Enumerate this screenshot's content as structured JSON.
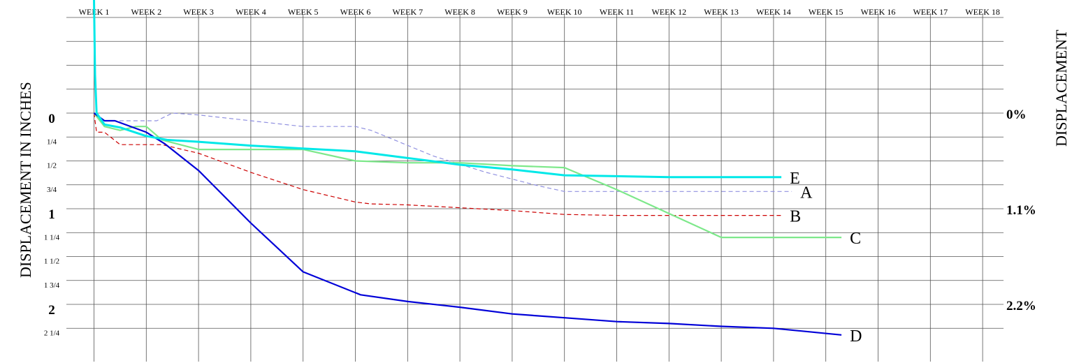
{
  "chart_data": {
    "type": "line",
    "title": "",
    "xlabel": "",
    "ylabel": "DISPLACEMENT IN INCHES",
    "ylabel_right": "DISPLACEMENT",
    "x_ticks": [
      "WEEK 1",
      "WEEK 2",
      "WEEK 3",
      "WEEK 4",
      "WEEK 5",
      "WEEK 6",
      "WEEK 7",
      "WEEK 8",
      "WEEK 9",
      "WEEK 10",
      "WEEK 11",
      "WEEK 12",
      "WEEK 13",
      "WEEK 14",
      "WEEK 15",
      "WEEK 16",
      "WEEK 17",
      "WEEK 18"
    ],
    "y_ticks": [
      "0",
      "1/4",
      "1/2",
      "3/4",
      "1",
      "1 1/4",
      "1 1/2",
      "1 3/4",
      "2",
      "2 1/4"
    ],
    "y_ticks_right": [
      {
        "value": 0,
        "label": "0%"
      },
      {
        "value": 1,
        "label": "1.1%"
      },
      {
        "value": 2,
        "label": "2.2%"
      }
    ],
    "ylim": [
      2.5,
      -1.2
    ],
    "xlim": [
      1,
      18.5
    ],
    "grid": true,
    "series": [
      {
        "name": "A",
        "color": "#9090e0",
        "style": "dashed",
        "points": [
          [
            1,
            0
          ],
          [
            1.2,
            0.08
          ],
          [
            1.6,
            0.08
          ],
          [
            2.2,
            0.08
          ],
          [
            2.5,
            0.0
          ],
          [
            3,
            0.02
          ],
          [
            4,
            0.08
          ],
          [
            5,
            0.14
          ],
          [
            6,
            0.14
          ],
          [
            6.3,
            0.18
          ],
          [
            7.5,
            0.45
          ],
          [
            8.5,
            0.62
          ],
          [
            9.5,
            0.76
          ],
          [
            10,
            0.82
          ],
          [
            11,
            0.82
          ],
          [
            12,
            0.82
          ],
          [
            13,
            0.82
          ],
          [
            14,
            0.82
          ],
          [
            14.35,
            0.82
          ]
        ]
      },
      {
        "name": "B",
        "color": "#cc0000",
        "style": "dashed",
        "points": [
          [
            1,
            0
          ],
          [
            1.05,
            0.2
          ],
          [
            1.2,
            0.2
          ],
          [
            1.5,
            0.33
          ],
          [
            2.3,
            0.33
          ],
          [
            3,
            0.42
          ],
          [
            4,
            0.62
          ],
          [
            5,
            0.8
          ],
          [
            6,
            0.93
          ],
          [
            6.3,
            0.95
          ],
          [
            7,
            0.96
          ],
          [
            8,
            0.99
          ],
          [
            9,
            1.02
          ],
          [
            10,
            1.06
          ],
          [
            11,
            1.07
          ],
          [
            12,
            1.07
          ],
          [
            13,
            1.07
          ],
          [
            14,
            1.07
          ],
          [
            14.15,
            1.07
          ]
        ]
      },
      {
        "name": "C",
        "color": "#7de88a",
        "style": "solid",
        "points": [
          [
            1,
            0
          ],
          [
            1.2,
            0.14
          ],
          [
            1.5,
            0.18
          ],
          [
            1.8,
            0.14
          ],
          [
            2,
            0.14
          ],
          [
            2.3,
            0.28
          ],
          [
            3,
            0.38
          ],
          [
            4,
            0.38
          ],
          [
            5,
            0.38
          ],
          [
            6,
            0.5
          ],
          [
            7,
            0.52
          ],
          [
            8,
            0.52
          ],
          [
            9,
            0.55
          ],
          [
            10,
            0.57
          ],
          [
            11,
            0.8
          ],
          [
            12,
            1.05
          ],
          [
            13,
            1.3
          ],
          [
            14,
            1.3
          ],
          [
            15,
            1.3
          ],
          [
            15.3,
            1.3
          ]
        ]
      },
      {
        "name": "D",
        "color": "#0000d8",
        "style": "solid",
        "points": [
          [
            1,
            0
          ],
          [
            1.2,
            0.08
          ],
          [
            1.4,
            0.08
          ],
          [
            2,
            0.2
          ],
          [
            2.35,
            0.32
          ],
          [
            3,
            0.6
          ],
          [
            4,
            1.15
          ],
          [
            5,
            1.66
          ],
          [
            6.1,
            1.9
          ],
          [
            7,
            1.97
          ],
          [
            8,
            2.03
          ],
          [
            9,
            2.1
          ],
          [
            10,
            2.14
          ],
          [
            11,
            2.18
          ],
          [
            12,
            2.2
          ],
          [
            13,
            2.23
          ],
          [
            14,
            2.25
          ],
          [
            15.3,
            2.32
          ]
        ]
      },
      {
        "name": "E",
        "color": "#00e8e8",
        "style": "solid",
        "points": [
          [
            1,
            -1.2
          ],
          [
            1.02,
            -0.4
          ],
          [
            1.05,
            0
          ],
          [
            1.2,
            0.12
          ],
          [
            1.5,
            0.15
          ],
          [
            2,
            0.24
          ],
          [
            2.4,
            0.28
          ],
          [
            3,
            0.3
          ],
          [
            4,
            0.34
          ],
          [
            5,
            0.37
          ],
          [
            6,
            0.4
          ],
          [
            7,
            0.47
          ],
          [
            8,
            0.54
          ],
          [
            9,
            0.59
          ],
          [
            10,
            0.65
          ],
          [
            11,
            0.66
          ],
          [
            12,
            0.67
          ],
          [
            13,
            0.67
          ],
          [
            14,
            0.67
          ],
          [
            14.15,
            0.67
          ]
        ]
      }
    ]
  }
}
